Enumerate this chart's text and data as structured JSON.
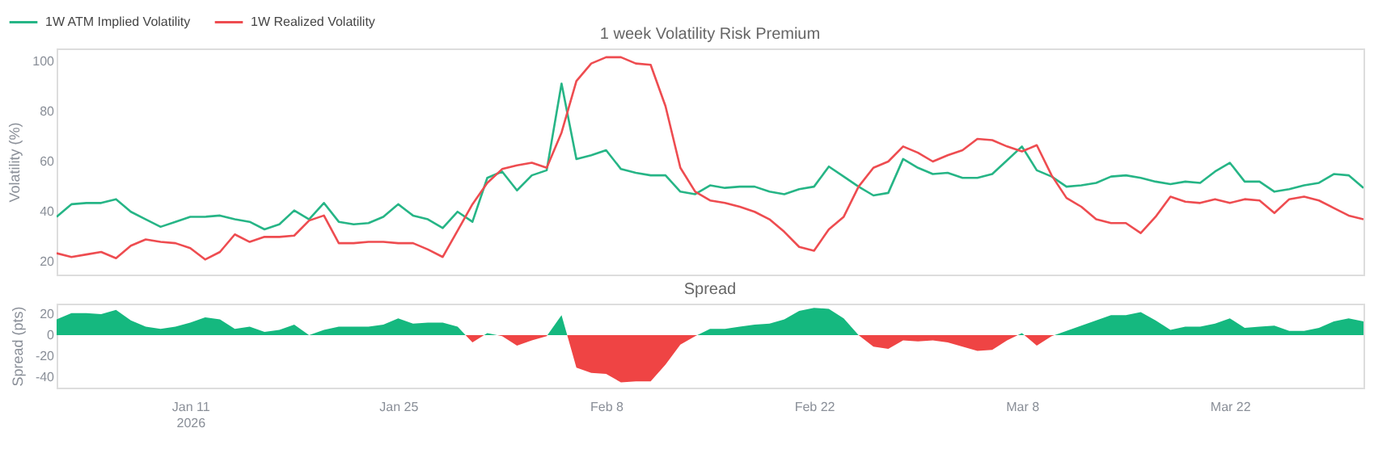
{
  "chart_data": [
    {
      "type": "line",
      "title": "1 week Volatility Risk Premium",
      "ylabel": "Volatility (%)",
      "legend": "top left",
      "tick_labels": "y",
      "x": [
        "2026-01-02",
        "2026-01-03",
        "2026-01-04",
        "2026-01-05",
        "2026-01-06",
        "2026-01-07",
        "2026-01-08",
        "2026-01-09",
        "2026-01-10",
        "2026-01-11",
        "2026-01-12",
        "2026-01-13",
        "2026-01-14",
        "2026-01-15",
        "2026-01-16",
        "2026-01-17",
        "2026-01-18",
        "2026-01-19",
        "2026-01-20",
        "2026-01-21",
        "2026-01-22",
        "2026-01-23",
        "2026-01-24",
        "2026-01-25",
        "2026-01-26",
        "2026-01-27",
        "2026-01-28",
        "2026-01-29",
        "2026-01-30",
        "2026-01-31",
        "2026-02-01",
        "2026-02-02",
        "2026-02-03",
        "2026-02-04",
        "2026-02-05",
        "2026-02-06",
        "2026-02-07",
        "2026-02-08",
        "2026-02-09",
        "2026-02-10",
        "2026-02-11",
        "2026-02-12",
        "2026-02-13",
        "2026-02-14",
        "2026-02-15",
        "2026-02-16",
        "2026-02-17",
        "2026-02-18",
        "2026-02-19",
        "2026-02-20",
        "2026-02-21",
        "2026-02-22",
        "2026-02-23",
        "2026-02-24",
        "2026-02-25",
        "2026-02-26",
        "2026-02-27",
        "2026-02-28",
        "2026-03-01",
        "2026-03-02",
        "2026-03-03",
        "2026-03-04",
        "2026-03-05",
        "2026-03-06",
        "2026-03-07",
        "2026-03-08",
        "2026-03-09",
        "2026-03-10",
        "2026-03-11",
        "2026-03-12",
        "2026-03-13",
        "2026-03-14",
        "2026-03-15",
        "2026-03-16",
        "2026-03-17",
        "2026-03-18",
        "2026-03-19",
        "2026-03-20",
        "2026-03-21",
        "2026-03-22",
        "2026-03-23",
        "2026-03-24",
        "2026-03-25",
        "2026-03-26",
        "2026-03-27",
        "2026-03-28",
        "2026-03-29",
        "2026-03-30",
        "2026-03-31"
      ],
      "xlim": [
        "2026-01-02",
        "2026-03-31"
      ],
      "ylim": [
        15,
        105
      ],
      "yticks": [
        20,
        40,
        60,
        80,
        100
      ],
      "series": [
        {
          "name": "1W ATM Implied Volatility",
          "color": "#26b586",
          "values": [
            38,
            43,
            43.5,
            43.5,
            45,
            40,
            37,
            34,
            36,
            38,
            38,
            38.5,
            37,
            36,
            33,
            35,
            40.5,
            37,
            43.5,
            36,
            35,
            35.5,
            38,
            43,
            38.5,
            37,
            33.5,
            40,
            36,
            53.5,
            56,
            48.5,
            54.5,
            56.5,
            91,
            61,
            62.5,
            64.5,
            57,
            55.5,
            54.5,
            54.5,
            48,
            47,
            50.5,
            49.5,
            50,
            50,
            48,
            47,
            49,
            50,
            58,
            54,
            50,
            46.5,
            47.5,
            61,
            57.5,
            55,
            55.5,
            53.5,
            53.5,
            55,
            60.5,
            66,
            56.5,
            54,
            50,
            50.5,
            51.5,
            54,
            54.5,
            53.5,
            52,
            51,
            52,
            51.5,
            56,
            59.5,
            52,
            52,
            48,
            49,
            50.5,
            51.5,
            55,
            54.5,
            49.5
          ]
        },
        {
          "name": "1W Realized Volatility",
          "color": "#ee4c50",
          "values": [
            23.5,
            22,
            23,
            24,
            21.5,
            26.5,
            29,
            28,
            27.5,
            25.5,
            21,
            24,
            31,
            28,
            30,
            30,
            30.5,
            36.5,
            38.5,
            27.5,
            27.5,
            28,
            28,
            27.5,
            27.5,
            25,
            22,
            32.5,
            43,
            51.5,
            57,
            58.5,
            59.5,
            57.5,
            71.5,
            92,
            99,
            101.5,
            101.5,
            99,
            98.5,
            82,
            57.5,
            48,
            44.5,
            43.5,
            42,
            40,
            37,
            32,
            26,
            24.5,
            33,
            38,
            50,
            57.5,
            60,
            66,
            63.5,
            60,
            62.5,
            64.5,
            69,
            68.5,
            66,
            64,
            66.5,
            54.5,
            45.5,
            42,
            37,
            35.5,
            35.5,
            31.5,
            38,
            46,
            44,
            43.5,
            45,
            43.5,
            45,
            44.5,
            39.5,
            45,
            46,
            44.5,
            41.5,
            38.5,
            37
          ]
        }
      ]
    },
    {
      "type": "area",
      "title": "Spread",
      "ylabel": "Spread (pts)",
      "x": [
        "2026-01-02",
        "2026-01-03",
        "2026-01-04",
        "2026-01-05",
        "2026-01-06",
        "2026-01-07",
        "2026-01-08",
        "2026-01-09",
        "2026-01-10",
        "2026-01-11",
        "2026-01-12",
        "2026-01-13",
        "2026-01-14",
        "2026-01-15",
        "2026-01-16",
        "2026-01-17",
        "2026-01-18",
        "2026-01-19",
        "2026-01-20",
        "2026-01-21",
        "2026-01-22",
        "2026-01-23",
        "2026-01-24",
        "2026-01-25",
        "2026-01-26",
        "2026-01-27",
        "2026-01-28",
        "2026-01-29",
        "2026-01-30",
        "2026-01-31",
        "2026-02-01",
        "2026-02-02",
        "2026-02-03",
        "2026-02-04",
        "2026-02-05",
        "2026-02-06",
        "2026-02-07",
        "2026-02-08",
        "2026-02-09",
        "2026-02-10",
        "2026-02-11",
        "2026-02-12",
        "2026-02-13",
        "2026-02-14",
        "2026-02-15",
        "2026-02-16",
        "2026-02-17",
        "2026-02-18",
        "2026-02-19",
        "2026-02-20",
        "2026-02-21",
        "2026-02-22",
        "2026-02-23",
        "2026-02-24",
        "2026-02-25",
        "2026-02-26",
        "2026-02-27",
        "2026-02-28",
        "2026-03-01",
        "2026-03-02",
        "2026-03-03",
        "2026-03-04",
        "2026-03-05",
        "2026-03-06",
        "2026-03-07",
        "2026-03-08",
        "2026-03-09",
        "2026-03-10",
        "2026-03-11",
        "2026-03-12",
        "2026-03-13",
        "2026-03-14",
        "2026-03-15",
        "2026-03-16",
        "2026-03-17",
        "2026-03-18",
        "2026-03-19",
        "2026-03-20",
        "2026-03-21",
        "2026-03-22",
        "2026-03-23",
        "2026-03-24",
        "2026-03-25",
        "2026-03-26",
        "2026-03-27",
        "2026-03-28",
        "2026-03-29",
        "2026-03-30",
        "2026-03-31"
      ],
      "xlim": [
        "2026-01-02",
        "2026-03-31"
      ],
      "xticks": [
        {
          "value": "2026-01-11",
          "label": "Jan 11\n2026"
        },
        {
          "value": "2026-01-25",
          "label": "Jan 25"
        },
        {
          "value": "2026-02-08",
          "label": "Feb 8"
        },
        {
          "value": "2026-02-22",
          "label": "Feb 22"
        },
        {
          "value": "2026-03-08",
          "label": "Mar 8"
        },
        {
          "value": "2026-03-22",
          "label": "Mar 22"
        }
      ],
      "ylim": [
        -50,
        30
      ],
      "yticks": [
        -40,
        -20,
        0,
        20
      ],
      "series": [
        {
          "values": [
            15,
            21,
            21,
            20,
            24,
            14,
            8,
            6,
            8,
            12,
            17,
            15,
            6,
            8,
            3,
            5,
            10,
            0,
            5,
            8,
            8,
            8,
            10,
            16,
            11,
            12,
            12,
            8,
            -7,
            2,
            -1,
            -10,
            -5,
            -1,
            19,
            -31,
            -36,
            -37,
            -45,
            -44,
            -44,
            -28,
            -9,
            -1,
            6,
            6,
            8,
            10,
            11,
            15,
            23,
            26,
            25,
            16,
            0,
            -11,
            -13,
            -5,
            -6,
            -5,
            -7,
            -11,
            -15,
            -14,
            -5,
            2,
            -10,
            -1,
            4,
            9,
            14,
            19,
            19,
            22,
            14,
            5,
            8,
            8,
            11,
            16,
            7,
            8,
            9,
            4,
            4,
            7,
            13,
            16,
            13
          ],
          "colors": [
            "#15b87f",
            "#15b87f",
            "#15b87f",
            "#15b87f",
            "#15b87f",
            "#15b87f",
            "#15b87f",
            "#15b87f",
            "#15b87f",
            "#15b87f",
            "#15b87f",
            "#15b87f",
            "#15b87f",
            "#15b87f",
            "#15b87f",
            "#15b87f",
            "#15b87f",
            "#15b87f",
            "#15b87f",
            "#15b87f",
            "#15b87f",
            "#15b87f",
            "#15b87f",
            "#15b87f",
            "#15b87f",
            "#15b87f",
            "#15b87f",
            "#15b87f",
            "#ef4444",
            "#15b87f",
            "#ef4444",
            "#ef4444",
            "#ef4444",
            "#ef4444",
            "#15b87f",
            "#ef4444",
            "#ef4444",
            "#ef4444",
            "#ef4444",
            "#ef4444",
            "#ef4444",
            "#ef4444",
            "#ef4444",
            "#ef4444",
            "#15b87f",
            "#15b87f",
            "#15b87f",
            "#15b87f",
            "#15b87f",
            "#15b87f",
            "#15b87f",
            "#15b87f",
            "#15b87f",
            "#15b87f",
            "#15b87f",
            "#ef4444",
            "#ef4444",
            "#ef4444",
            "#ef4444",
            "#ef4444",
            "#ef4444",
            "#ef4444",
            "#ef4444",
            "#ef4444",
            "#ef4444",
            "#15b87f",
            "#ef4444",
            "#ef4444",
            "#15b87f",
            "#15b87f",
            "#15b87f",
            "#15b87f",
            "#15b87f",
            "#15b87f",
            "#15b87f",
            "#15b87f",
            "#15b87f",
            "#15b87f",
            "#15b87f",
            "#15b87f",
            "#15b87f",
            "#15b87f",
            "#15b87f",
            "#15b87f",
            "#15b87f",
            "#15b87f",
            "#15b87f",
            "#15b87f",
            "#15b87f"
          ]
        }
      ]
    }
  ]
}
